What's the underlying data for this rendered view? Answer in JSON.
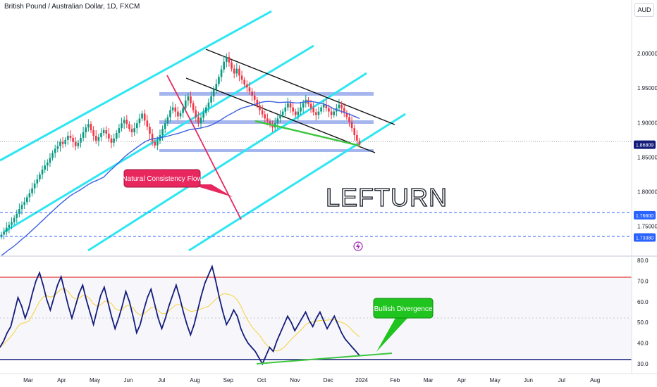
{
  "header": {
    "symbol_title": "British Pound / Australian Dollar, 1D, FXCM",
    "currency": "AUD"
  },
  "colors": {
    "candle_up": "#089981",
    "candle_down": "#f23645",
    "channel": "#2ee6f2",
    "zone": "#8fa3e8",
    "ma": "#3d5fe0",
    "trend": "#111111",
    "divergence": "#3ec63e",
    "annotation_red": "#e8275f",
    "annotation_green": "#1fc41f",
    "rsi": "#131c7a",
    "rsi_ma": "#f5d44a",
    "rsi_upper": "#e53935",
    "rsi_lower": "#131c7a",
    "dashed_level": "#2962ff"
  },
  "annotations": {
    "natural_flow": "Natural Consistency Flow",
    "bullish_div": "Bullish Divergence",
    "watermark": "LEFTURN"
  },
  "chart_data": [
    {
      "type": "candlestick",
      "title": "British Pound / Australian Dollar, 1D, FXCM",
      "x_ticks": [
        "Mar",
        "Apr",
        "May",
        "Jun",
        "Jul",
        "Aug",
        "Sep",
        "Oct",
        "Nov",
        "Dec",
        "2024",
        "Feb",
        "Mar",
        "Apr",
        "May",
        "Jun",
        "Jul",
        "Aug"
      ],
      "y_ticks": [
        "2.00000",
        "1.95000",
        "1.90000",
        "1.85000",
        "1.80000",
        "1.75000"
      ],
      "ylim": [
        1.715,
        2.055
      ],
      "price_labels": [
        {
          "value": 1.86809,
          "text": "1.86809",
          "style": "current"
        },
        {
          "value": 1.766,
          "text": "1.76600",
          "style": "dashed"
        },
        {
          "value": 1.7338,
          "text": "1.73380",
          "style": "dashed"
        }
      ],
      "close_series": [
        1.738,
        1.742,
        1.748,
        1.752,
        1.756,
        1.762,
        1.768,
        1.775,
        1.781,
        1.785,
        1.792,
        1.798,
        1.805,
        1.812,
        1.818,
        1.825,
        1.832,
        1.838,
        1.842,
        1.849,
        1.856,
        1.862,
        1.866,
        1.872,
        1.869,
        1.875,
        1.881,
        1.878,
        1.872,
        1.866,
        1.871,
        1.878,
        1.886,
        1.893,
        1.898,
        1.889,
        1.881,
        1.874,
        1.879,
        1.885,
        1.889,
        1.884,
        1.877,
        1.871,
        1.877,
        1.885,
        1.892,
        1.899,
        1.904,
        1.898,
        1.891,
        1.886,
        1.892,
        1.899,
        1.906,
        1.913,
        1.903,
        1.894,
        1.884,
        1.872,
        1.867,
        1.874,
        1.882,
        1.891,
        1.899,
        1.908,
        1.918,
        1.922,
        1.916,
        1.909,
        1.914,
        1.921,
        1.932,
        1.938,
        1.928,
        1.918,
        1.908,
        1.899,
        1.907,
        1.914,
        1.922,
        1.929,
        1.938,
        1.948,
        1.956,
        1.966,
        1.977,
        1.988,
        1.995,
        1.987,
        1.978,
        1.971,
        1.978,
        1.968,
        1.962,
        1.955,
        1.951,
        1.945,
        1.939,
        1.933,
        1.925,
        1.918,
        1.912,
        1.906,
        1.902,
        1.897,
        1.893,
        1.899,
        1.906,
        1.911,
        1.916,
        1.922,
        1.928,
        1.922,
        1.916,
        1.911,
        1.916,
        1.922,
        1.928,
        1.933,
        1.927,
        1.921,
        1.915,
        1.911,
        1.916,
        1.922,
        1.926,
        1.921,
        1.916,
        1.911,
        1.916,
        1.921,
        1.926,
        1.921,
        1.914,
        1.908,
        1.901,
        1.892,
        1.882,
        1.874,
        1.868
      ]
    },
    {
      "type": "line",
      "y_ticks": [
        "80.0",
        "70.0",
        "60.0",
        "50.0",
        "40.0",
        "30.0"
      ],
      "ylim": [
        28,
        82
      ],
      "levels": [
        70,
        30
      ],
      "rsi_series": [
        38,
        41,
        45,
        48,
        55,
        62,
        58,
        52,
        57,
        64,
        70,
        74,
        68,
        61,
        56,
        62,
        68,
        72,
        65,
        58,
        52,
        58,
        64,
        68,
        61,
        55,
        49,
        56,
        63,
        67,
        60,
        53,
        47,
        52,
        58,
        65,
        60,
        53,
        45,
        49,
        56,
        62,
        66,
        59,
        52,
        47,
        52,
        58,
        63,
        68,
        62,
        55,
        49,
        44,
        49,
        56,
        63,
        69,
        73,
        77,
        70,
        62,
        55,
        49,
        52,
        56,
        53,
        47,
        43,
        40,
        38,
        36,
        33,
        30,
        34,
        38,
        36,
        41,
        45,
        49,
        53,
        50,
        46,
        49,
        52,
        55,
        51,
        48,
        52,
        55,
        51,
        47,
        50,
        53,
        49,
        45,
        42,
        40,
        38,
        36,
        34
      ]
    }
  ]
}
